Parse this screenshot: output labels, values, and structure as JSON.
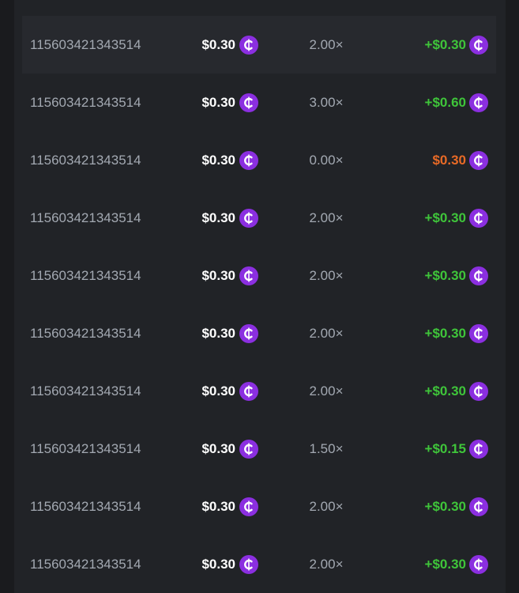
{
  "table": {
    "rows": [
      {
        "id": "115603421343514",
        "bet": "$0.30",
        "multiplier": "2.00×",
        "payout": "+$0.30"
      },
      {
        "id": "115603421343514",
        "bet": "$0.30",
        "multiplier": "3.00×",
        "payout": "+$0.60"
      },
      {
        "id": "115603421343514",
        "bet": "$0.30",
        "multiplier": "0.00×",
        "payout": "$0.30"
      },
      {
        "id": "115603421343514",
        "bet": "$0.30",
        "multiplier": "2.00×",
        "payout": "+$0.30"
      },
      {
        "id": "115603421343514",
        "bet": "$0.30",
        "multiplier": "2.00×",
        "payout": "+$0.30"
      },
      {
        "id": "115603421343514",
        "bet": "$0.30",
        "multiplier": "2.00×",
        "payout": "+$0.30"
      },
      {
        "id": "115603421343514",
        "bet": "$0.30",
        "multiplier": "2.00×",
        "payout": "+$0.30"
      },
      {
        "id": "115603421343514",
        "bet": "$0.30",
        "multiplier": "1.50×",
        "payout": "+$0.15"
      },
      {
        "id": "115603421343514",
        "bet": "$0.30",
        "multiplier": "2.00×",
        "payout": "+$0.30"
      },
      {
        "id": "115603421343514",
        "bet": "$0.30",
        "multiplier": "2.00×",
        "payout": "+$0.30"
      }
    ]
  }
}
